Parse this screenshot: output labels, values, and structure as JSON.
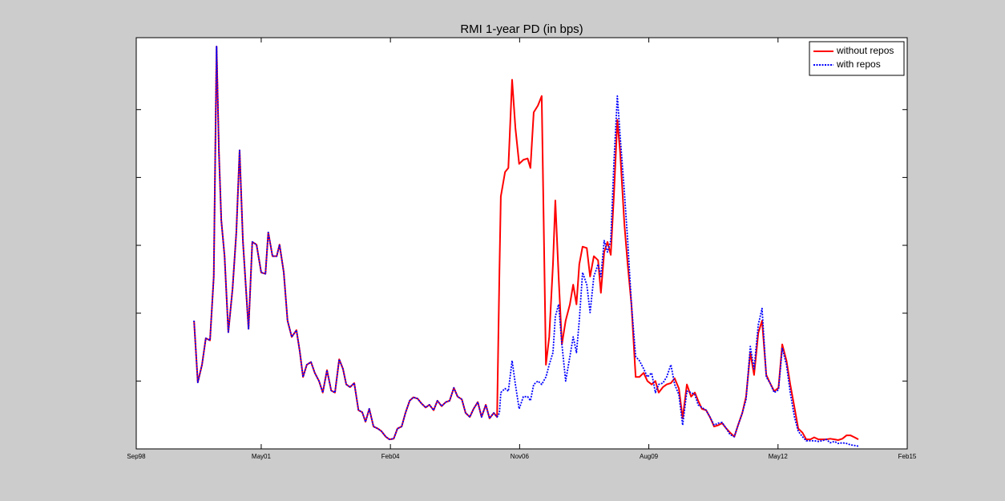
{
  "chart_data": {
    "type": "line",
    "title": "RMI 1-year PD (in bps)",
    "x": [
      1999.9,
      1999.98,
      2000.07,
      2000.15,
      2000.24,
      2000.32,
      2000.38,
      2000.43,
      2000.48,
      2000.55,
      2000.63,
      2000.72,
      2000.8,
      2000.87,
      2000.94,
      2001.06,
      2001.14,
      2001.23,
      2001.33,
      2001.42,
      2001.48,
      2001.57,
      2001.66,
      2001.72,
      2001.81,
      2001.89,
      2001.98,
      2002.08,
      2002.15,
      2002.22,
      2002.3,
      2002.39,
      2002.47,
      2002.56,
      2002.64,
      2002.73,
      2002.82,
      2002.9,
      2002.99,
      2003.07,
      2003.14,
      2003.22,
      2003.31,
      2003.4,
      2003.48,
      2003.55,
      2003.63,
      2003.72,
      2003.81,
      2003.89,
      2003.98,
      2004.06,
      2004.15,
      2004.23,
      2004.32,
      2004.4,
      2004.49,
      2004.57,
      2004.66,
      2004.74,
      2004.83,
      2004.91,
      2005.0,
      2005.08,
      2005.17,
      2005.26,
      2005.34,
      2005.43,
      2005.51,
      2005.6,
      2005.68,
      2005.77,
      2005.85,
      2005.94,
      2006.02,
      2006.11,
      2006.19,
      2006.28,
      2006.35,
      2006.4,
      2006.43,
      2006.52,
      2006.59,
      2006.67,
      2006.74,
      2006.82,
      2006.91,
      2007.0,
      2007.06,
      2007.13,
      2007.22,
      2007.3,
      2007.39,
      2007.46,
      2007.54,
      2007.59,
      2007.66,
      2007.73,
      2007.81,
      2007.9,
      2007.97,
      2008.04,
      2008.1,
      2008.17,
      2008.26,
      2008.33,
      2008.41,
      2008.5,
      2008.56,
      2008.63,
      2008.7,
      2008.77,
      2008.84,
      2008.91,
      2008.97,
      2009.06,
      2009.13,
      2009.21,
      2009.3,
      2009.38,
      2009.47,
      2009.55,
      2009.64,
      2009.72,
      2009.79,
      2009.88,
      2009.96,
      2010.05,
      2010.13,
      2010.22,
      2010.3,
      2010.39,
      2010.48,
      2010.56,
      2010.63,
      2010.71,
      2010.8,
      2010.88,
      2010.97,
      2011.06,
      2011.14,
      2011.23,
      2011.31,
      2011.4,
      2011.48,
      2011.57,
      2011.65,
      2011.74,
      2011.82,
      2011.91,
      2011.99,
      2012.08,
      2012.16,
      2012.25,
      2012.34,
      2012.42,
      2012.51,
      2012.59,
      2012.68,
      2012.76,
      2012.85,
      2012.93,
      2013.02,
      2013.1,
      2013.19,
      2013.27,
      2013.36,
      2013.44,
      2013.53,
      2013.61,
      2013.7,
      2013.79,
      2013.87,
      2013.96,
      2014.04
    ],
    "series": [
      {
        "name": "without repos",
        "color": "#ff0000",
        "style": "solid",
        "values": [
          1.89,
          0.98,
          1.24,
          1.63,
          1.6,
          2.54,
          5.93,
          4.37,
          3.37,
          2.84,
          1.72,
          2.36,
          3.19,
          4.4,
          3.07,
          1.77,
          3.05,
          3.01,
          2.6,
          2.58,
          3.19,
          2.84,
          2.84,
          3.01,
          2.6,
          1.89,
          1.65,
          1.75,
          1.44,
          1.06,
          1.24,
          1.28,
          1.12,
          1.0,
          0.83,
          1.16,
          0.86,
          0.83,
          1.32,
          1.18,
          0.95,
          0.91,
          0.97,
          0.57,
          0.54,
          0.4,
          0.59,
          0.33,
          0.3,
          0.26,
          0.18,
          0.14,
          0.15,
          0.3,
          0.33,
          0.53,
          0.71,
          0.76,
          0.74,
          0.67,
          0.61,
          0.65,
          0.57,
          0.71,
          0.63,
          0.69,
          0.71,
          0.9,
          0.77,
          0.73,
          0.53,
          0.47,
          0.59,
          0.69,
          0.47,
          0.65,
          0.45,
          0.53,
          0.47,
          2.6,
          3.72,
          4.08,
          4.14,
          5.44,
          4.73,
          4.2,
          4.26,
          4.28,
          4.14,
          4.96,
          5.06,
          5.2,
          1.24,
          1.65,
          2.72,
          3.66,
          2.54,
          1.54,
          1.89,
          2.13,
          2.42,
          2.13,
          2.72,
          2.98,
          2.96,
          2.54,
          2.84,
          2.78,
          2.3,
          2.9,
          3.05,
          2.86,
          3.78,
          4.85,
          4.37,
          3.31,
          2.72,
          2.13,
          1.06,
          1.06,
          1.12,
          1.0,
          0.95,
          1.0,
          0.83,
          0.91,
          0.95,
          0.97,
          1.04,
          0.89,
          0.45,
          0.95,
          0.77,
          0.83,
          0.71,
          0.59,
          0.57,
          0.47,
          0.33,
          0.35,
          0.38,
          0.3,
          0.24,
          0.18,
          0.35,
          0.53,
          0.77,
          1.42,
          1.09,
          1.71,
          1.89,
          1.09,
          0.97,
          0.85,
          0.9,
          1.54,
          1.3,
          0.95,
          0.61,
          0.3,
          0.24,
          0.14,
          0.14,
          0.17,
          0.14,
          0.14,
          0.14,
          0.15,
          0.14,
          0.13,
          0.15,
          0.2,
          0.2,
          0.17,
          0.14
        ]
      },
      {
        "name": "with repos",
        "color": "#0000ff",
        "style": "dotted",
        "values": [
          1.89,
          0.98,
          1.24,
          1.63,
          1.6,
          2.54,
          5.93,
          4.37,
          3.37,
          2.84,
          1.72,
          2.36,
          3.19,
          4.4,
          3.07,
          1.77,
          3.05,
          3.01,
          2.6,
          2.58,
          3.19,
          2.84,
          2.84,
          3.01,
          2.6,
          1.89,
          1.65,
          1.75,
          1.44,
          1.06,
          1.24,
          1.28,
          1.12,
          1.0,
          0.83,
          1.16,
          0.86,
          0.83,
          1.32,
          1.18,
          0.95,
          0.91,
          0.97,
          0.57,
          0.54,
          0.4,
          0.59,
          0.33,
          0.3,
          0.26,
          0.18,
          0.14,
          0.15,
          0.3,
          0.33,
          0.53,
          0.71,
          0.76,
          0.74,
          0.67,
          0.61,
          0.65,
          0.57,
          0.71,
          0.63,
          0.69,
          0.71,
          0.9,
          0.77,
          0.73,
          0.53,
          0.47,
          0.59,
          0.69,
          0.47,
          0.65,
          0.45,
          0.53,
          0.47,
          0.53,
          0.83,
          0.89,
          0.85,
          1.3,
          0.95,
          0.59,
          0.77,
          0.77,
          0.71,
          0.95,
          1.0,
          0.95,
          1.06,
          1.24,
          1.42,
          1.95,
          2.13,
          1.54,
          1.0,
          1.36,
          1.65,
          1.42,
          1.89,
          2.6,
          2.42,
          2.01,
          2.54,
          2.72,
          2.54,
          3.07,
          2.9,
          3.07,
          4.26,
          5.2,
          4.61,
          3.78,
          3.07,
          2.13,
          1.36,
          1.3,
          1.18,
          1.06,
          1.12,
          0.83,
          0.95,
          0.97,
          1.06,
          1.24,
          0.95,
          0.8,
          0.35,
          0.85,
          0.83,
          0.8,
          0.65,
          0.61,
          0.57,
          0.47,
          0.35,
          0.38,
          0.39,
          0.3,
          0.21,
          0.18,
          0.35,
          0.53,
          0.73,
          1.51,
          1.18,
          1.83,
          2.07,
          1.06,
          0.97,
          0.83,
          0.87,
          1.48,
          1.24,
          0.83,
          0.47,
          0.26,
          0.18,
          0.12,
          0.12,
          0.12,
          0.11,
          0.12,
          0.14,
          0.09,
          0.11,
          0.08,
          0.09,
          0.08,
          0.06,
          0.05,
          0.04
        ]
      }
    ],
    "xlim": [
      1998.67,
      2015.08
    ],
    "xticks": [
      {
        "value": 1998.67,
        "label": "Sep98"
      },
      {
        "value": 2001.33,
        "label": "May01"
      },
      {
        "value": 2004.08,
        "label": "Feb04"
      },
      {
        "value": 2006.83,
        "label": "Nov06"
      },
      {
        "value": 2009.58,
        "label": "Aug09"
      },
      {
        "value": 2012.33,
        "label": "May12"
      },
      {
        "value": 2015.08,
        "label": "Feb15"
      }
    ],
    "ylim": [
      0,
      6.06
    ],
    "yticks": [
      0,
      1,
      2,
      3,
      4,
      5
    ],
    "legend": "top-right"
  }
}
